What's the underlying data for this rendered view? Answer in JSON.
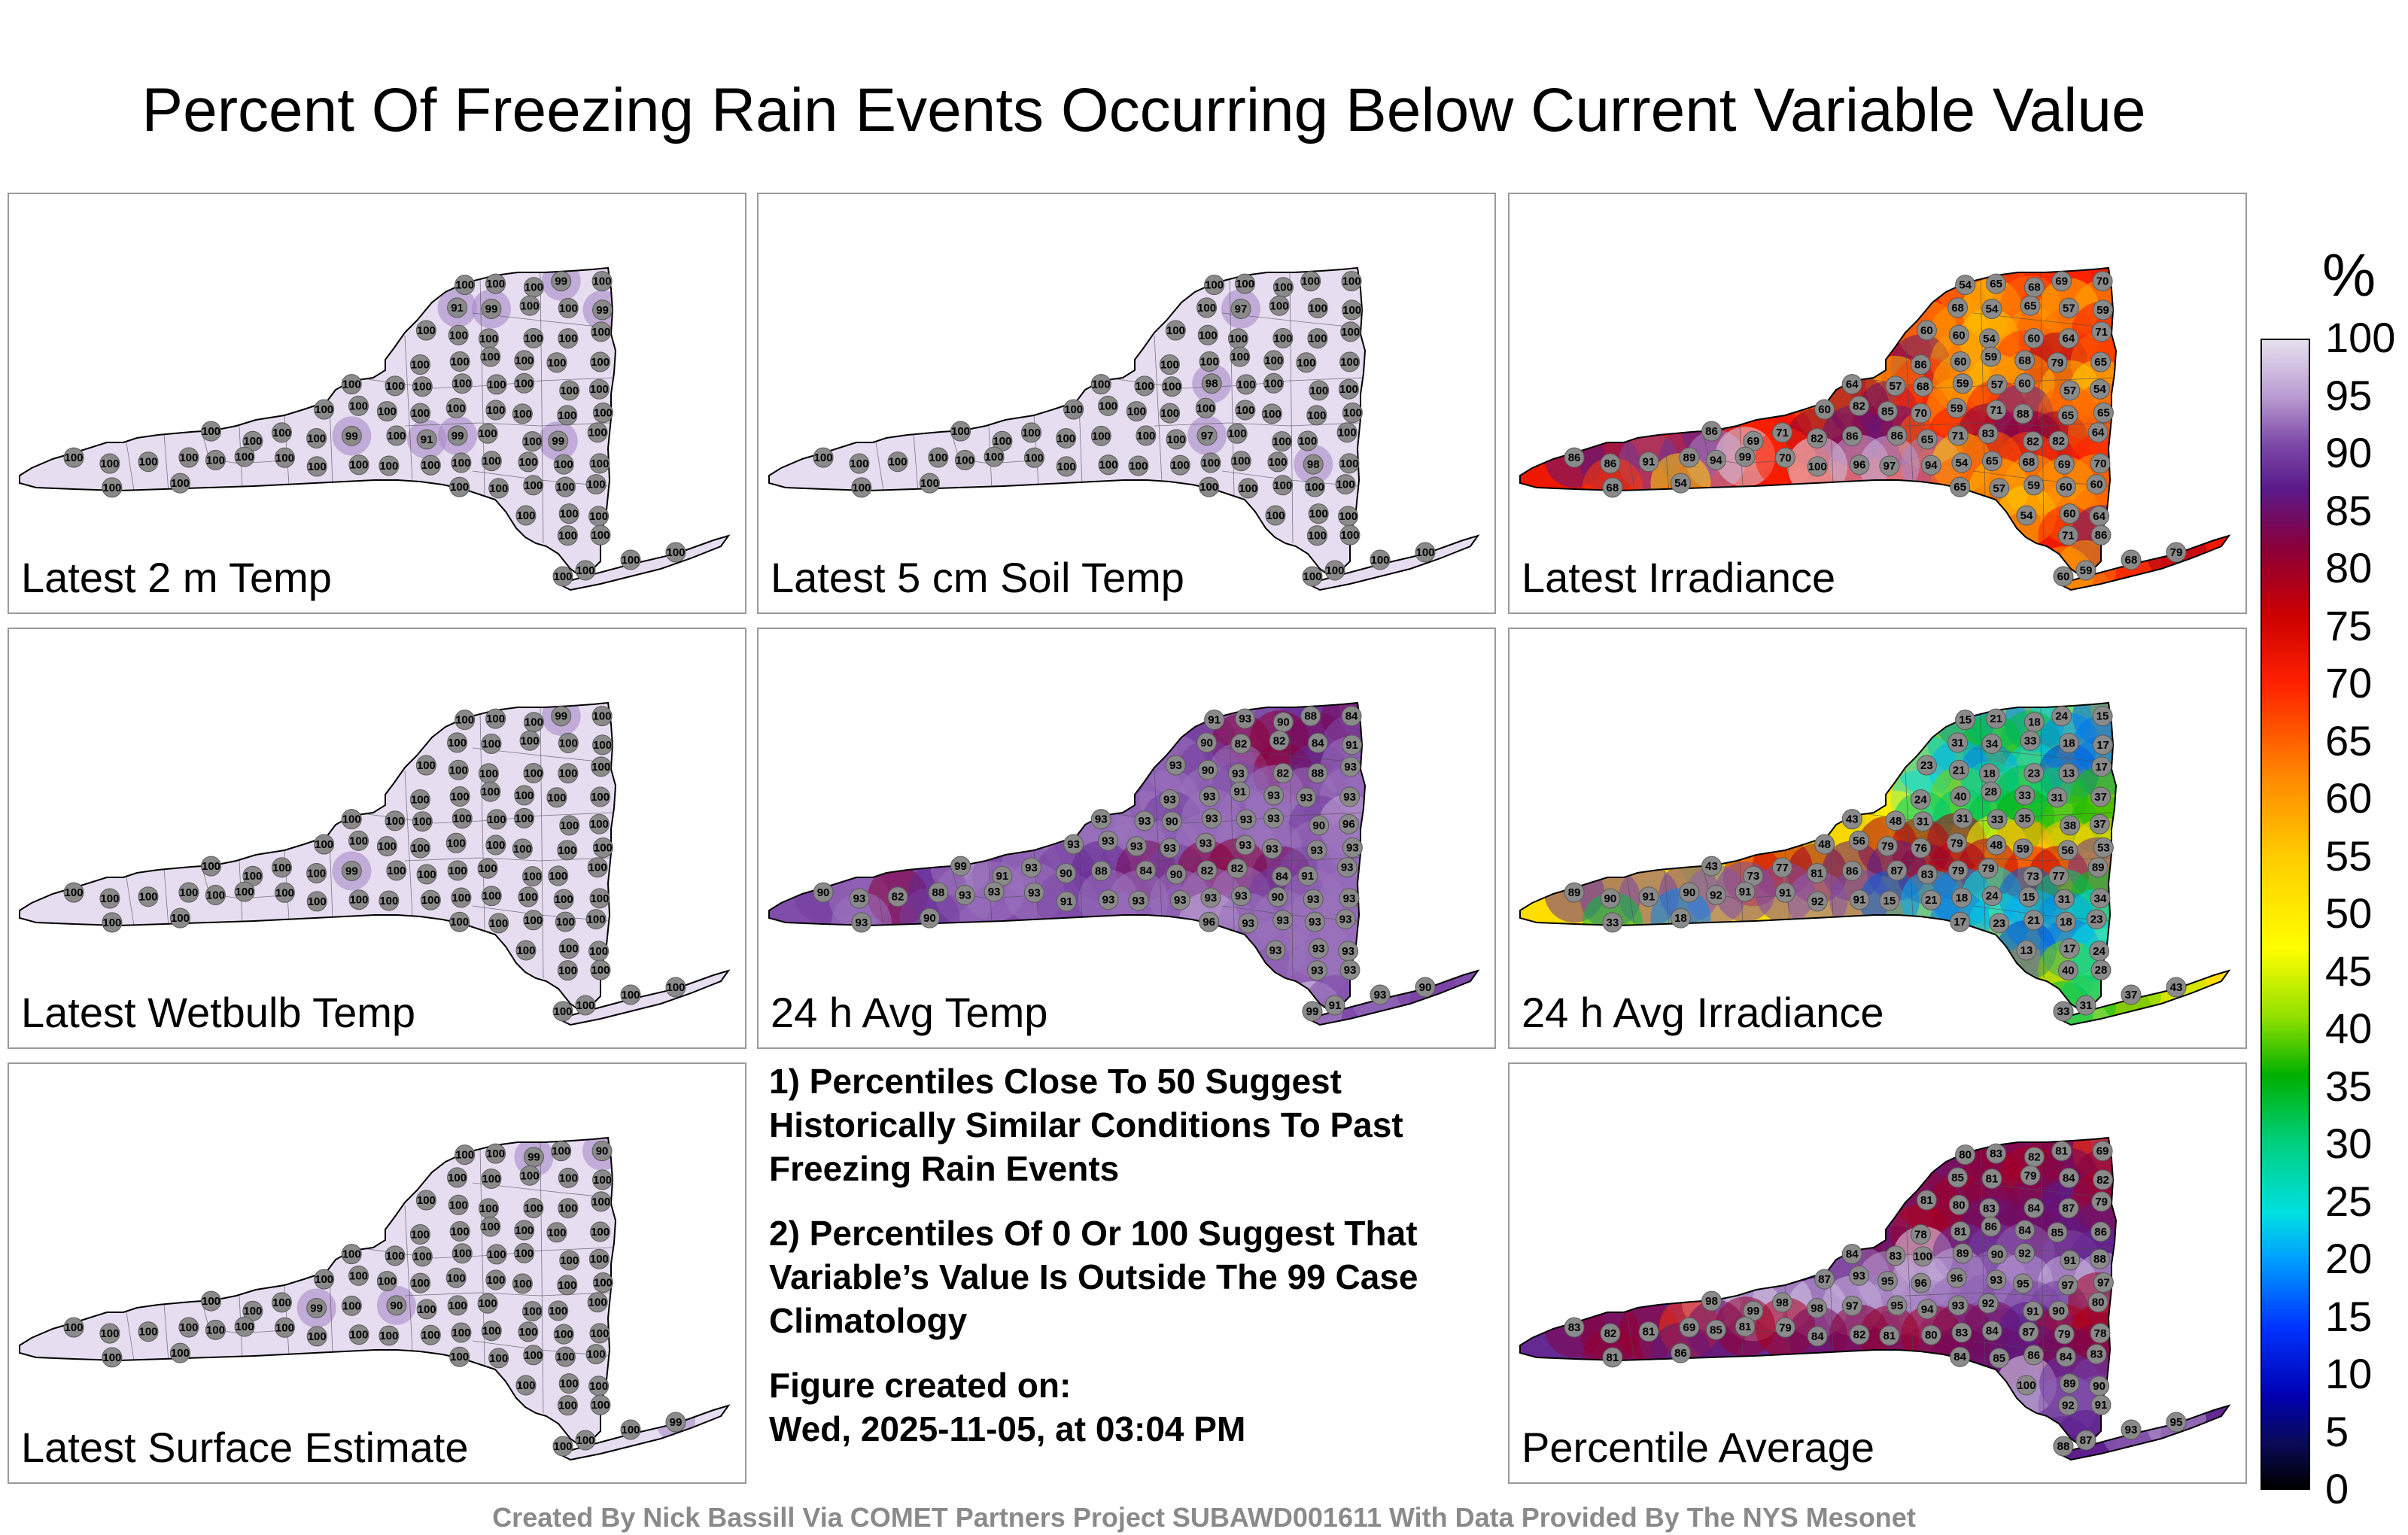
{
  "title": "Percent Of Freezing Rain Events Occurring Below Current Variable Value",
  "panels": [
    {
      "id": "temp2m",
      "label": "Latest 2 m Temp",
      "palette": "lavender",
      "values": [
        100,
        100,
        100,
        99,
        100,
        91,
        99,
        100,
        100,
        99,
        100,
        100,
        100,
        100,
        100,
        100,
        100,
        100,
        100,
        100,
        100,
        100,
        100,
        100,
        100,
        100,
        100,
        100,
        100,
        100,
        100,
        100,
        100,
        100,
        100,
        100,
        100,
        100,
        100,
        100
      ]
    },
    {
      "id": "soil5cm",
      "label": "Latest 5 cm Soil Temp",
      "palette": "lavender",
      "values": [
        100,
        100,
        100,
        100,
        100,
        100,
        97,
        100,
        100,
        100,
        100,
        100,
        100,
        100,
        100,
        100,
        100,
        100,
        100,
        100,
        100,
        100,
        100,
        100,
        100,
        98,
        100,
        100,
        100,
        100,
        100,
        100,
        100,
        100,
        100,
        100,
        100,
        100,
        100,
        100
      ]
    },
    {
      "id": "irradiance",
      "label": "Latest Irradiance",
      "palette": "warm",
      "values": [
        54,
        65,
        68,
        69,
        70,
        68,
        54,
        65,
        57,
        59,
        60,
        60,
        54,
        60,
        64,
        71,
        86,
        60,
        59,
        68,
        79,
        65,
        64,
        57,
        68,
        59,
        57,
        60,
        57,
        54,
        60,
        82,
        85,
        70,
        59,
        71,
        88,
        65,
        65,
        86,
        69,
        71,
        82,
        86,
        86,
        65,
        71,
        83,
        82,
        82,
        64,
        86,
        86,
        91,
        89,
        94,
        99,
        70,
        100,
        96,
        97,
        94
      ]
    },
    {
      "id": "wetbulb",
      "label": "Latest Wetbulb Temp",
      "palette": "lavender",
      "values": [
        100,
        100,
        100,
        99,
        100,
        100,
        100,
        100,
        100,
        100,
        100,
        100,
        100,
        100,
        100,
        100,
        100,
        100,
        100,
        100,
        100,
        100,
        100,
        100,
        100,
        100,
        100,
        100,
        100,
        100,
        100,
        100,
        100,
        100,
        100,
        100,
        100,
        100,
        100,
        100
      ]
    },
    {
      "id": "avgtemp24",
      "label": "24 h Avg Temp",
      "palette": "purple",
      "values": [
        91,
        93,
        90,
        88,
        84,
        90,
        82,
        82,
        84,
        91,
        93,
        90,
        93,
        82,
        88,
        93,
        93,
        93,
        91,
        93,
        93,
        93,
        93,
        93,
        90,
        93,
        93,
        93,
        90,
        96,
        93,
        93,
        93,
        93,
        93,
        93,
        93,
        93,
        93,
        99
      ]
    },
    {
      "id": "avgirr24",
      "label": "24 h Avg Irradiance",
      "palette": "rainbow",
      "values": [
        15,
        21,
        18,
        24,
        15,
        31,
        34,
        33,
        18,
        17,
        23,
        21,
        18,
        23,
        13,
        17,
        24,
        40,
        28,
        33,
        31,
        37,
        43,
        48,
        31,
        31,
        33,
        35,
        38,
        37,
        48,
        56,
        79,
        76,
        79,
        48,
        59,
        56,
        53,
        43,
        73,
        77,
        81,
        86,
        87,
        83,
        79,
        79,
        73,
        77,
        89,
        89,
        90,
        91,
        90,
        92,
        91,
        91,
        92,
        91
      ]
    },
    {
      "id": "surfaceest",
      "label": "Latest Surface Estimate",
      "palette": "lavender",
      "values": [
        100,
        100,
        99,
        100,
        90,
        100,
        100,
        100,
        100,
        100,
        100,
        100,
        100,
        100,
        100,
        100,
        100,
        100,
        100,
        100,
        100,
        100,
        100,
        100,
        100,
        100,
        100,
        100,
        100,
        100,
        100,
        100,
        100,
        100,
        100,
        100,
        100,
        100,
        100,
        100
      ]
    },
    {
      "id": "pctavg",
      "label": "Percentile Average",
      "palette": "mix",
      "values": [
        80,
        83,
        82,
        81,
        69,
        85,
        81,
        79,
        84,
        82,
        81,
        80,
        83,
        84,
        87,
        79,
        78,
        81,
        86,
        84,
        85,
        86,
        84,
        83,
        100,
        89,
        90,
        92,
        91,
        88,
        87,
        93,
        95,
        96,
        96,
        93,
        95,
        97,
        97,
        98,
        99,
        98,
        98,
        97,
        95,
        94,
        93,
        92,
        91,
        90
      ]
    }
  ],
  "notes": [
    "1) Percentiles Close To 50 Suggest Historically Similar Conditions To Past Freezing Rain Events",
    "2) Percentiles Of 0 Or 100 Suggest That Variable’s Value Is Outside The 99 Case Climatology",
    "Figure created on:",
    "Wed, 2025-11-05, at 03:04 PM"
  ],
  "colorbar": {
    "unit": "%",
    "ticks": [
      "100",
      "95",
      "90",
      "85",
      "80",
      "75",
      "70",
      "65",
      "60",
      "55",
      "50",
      "45",
      "40",
      "35",
      "30",
      "25",
      "20",
      "15",
      "10",
      "5",
      "0"
    ]
  },
  "footer": "Created By Nick Bassill Via COMET Partners Project SUBAWD001611 With Data Provided By The NYS Mesonet"
}
